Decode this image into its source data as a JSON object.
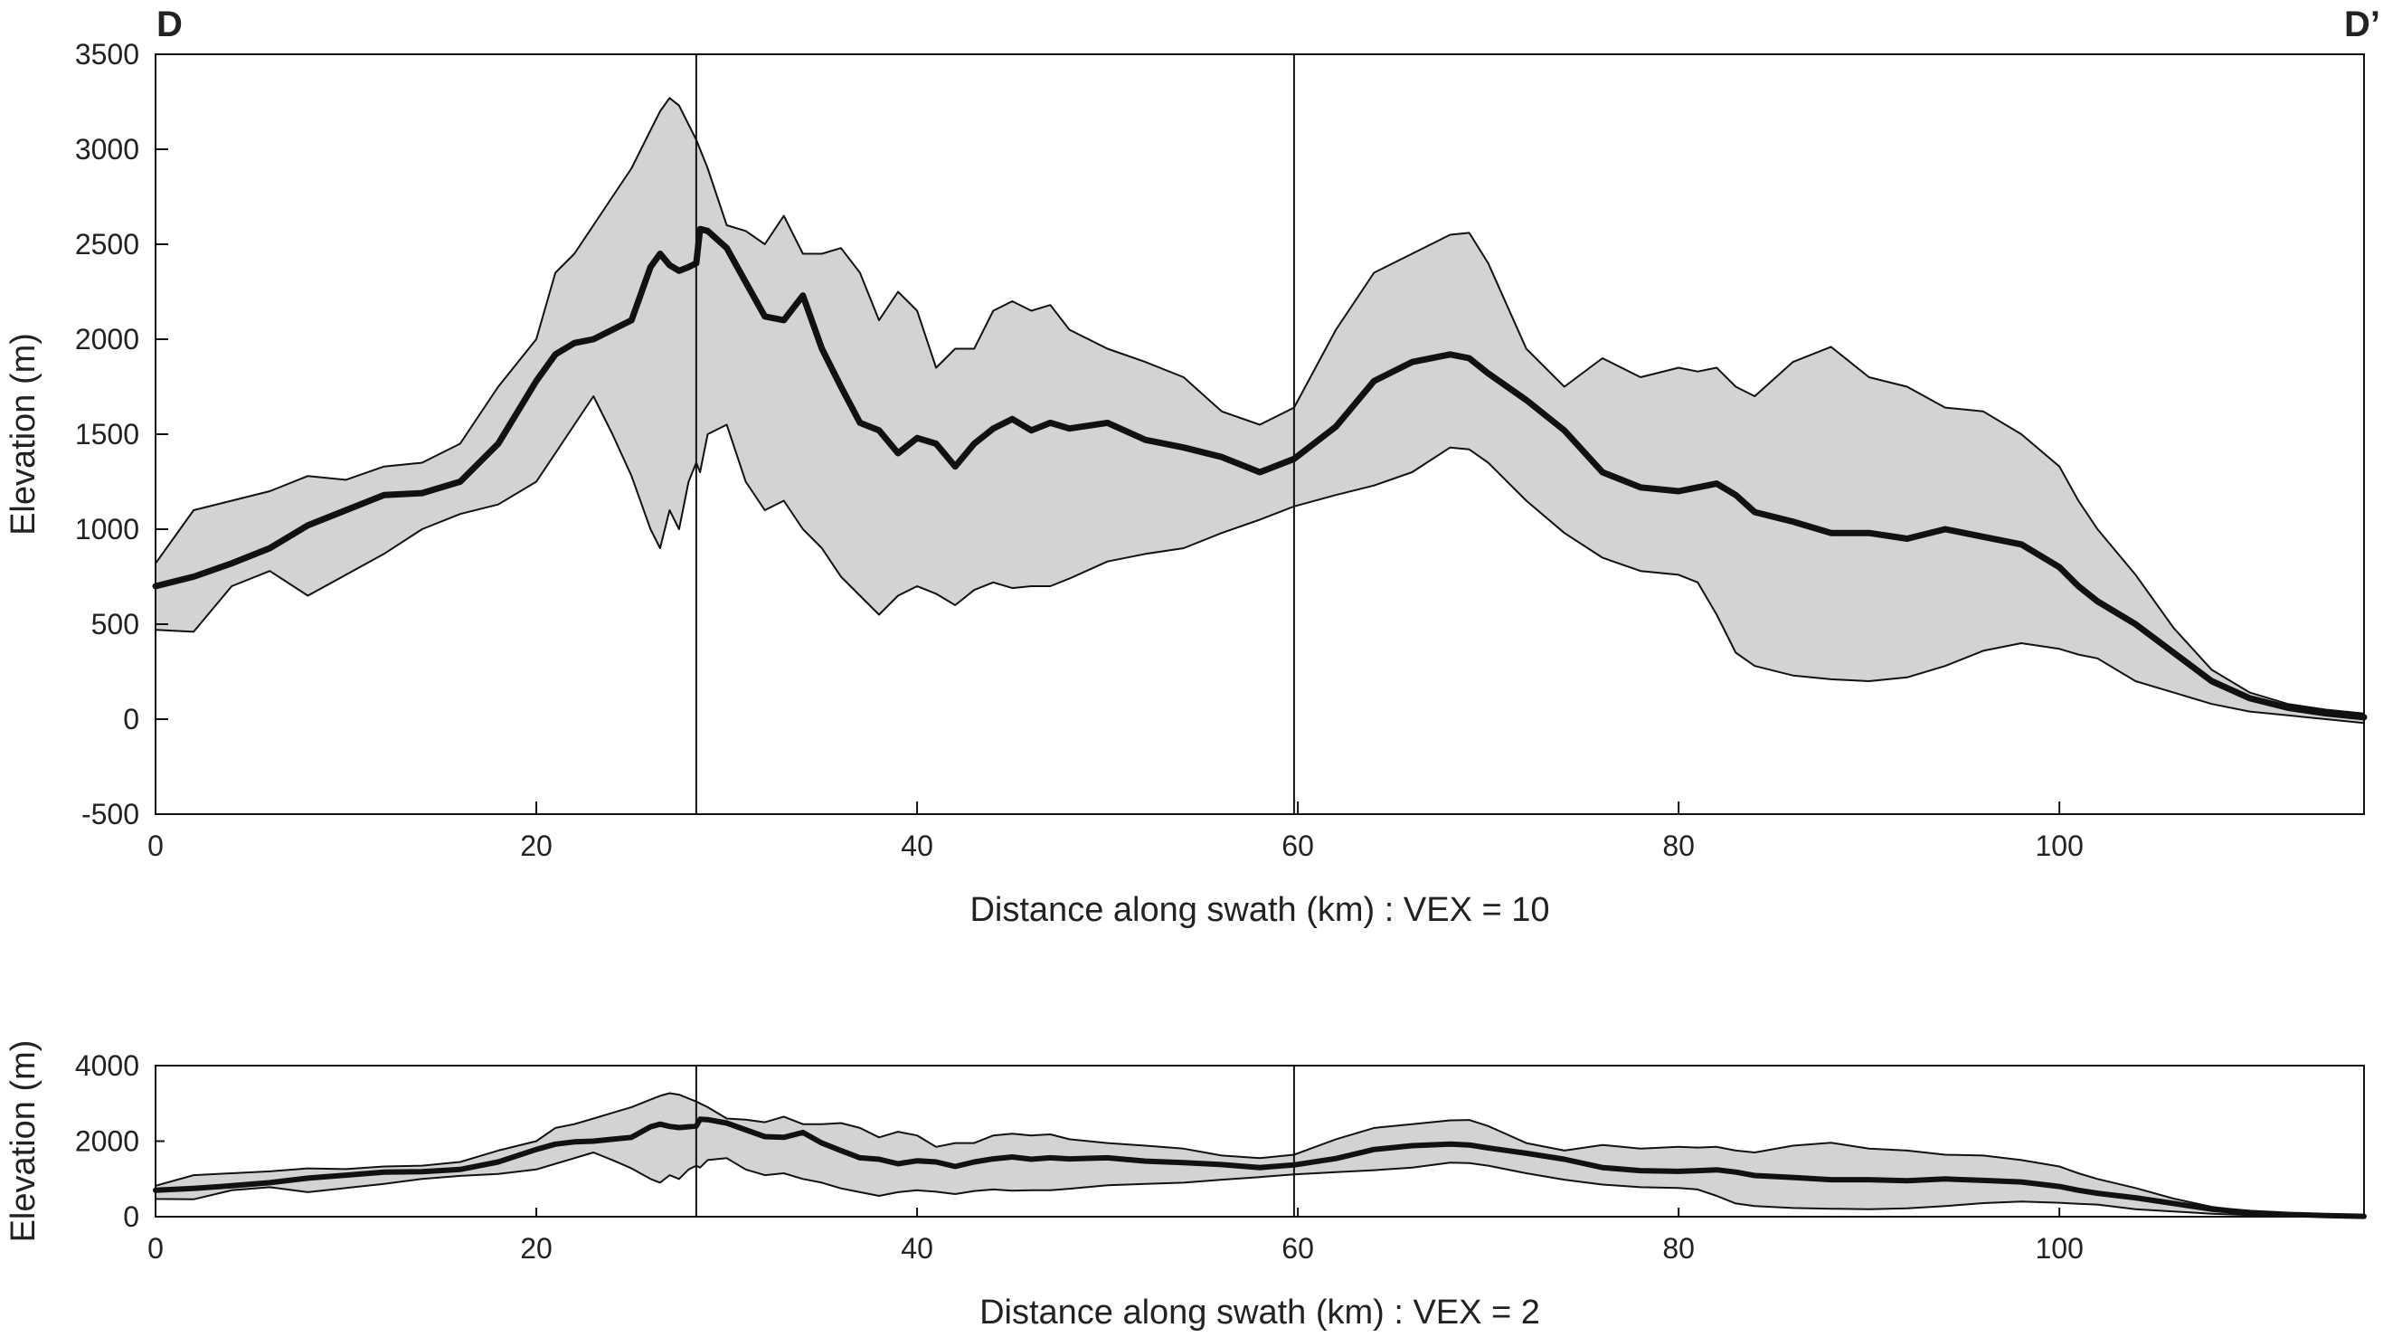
{
  "figure": {
    "corner_left": "D",
    "corner_right": "D’"
  },
  "chart_data": [
    {
      "type": "area",
      "title": "",
      "xlabel": "Distance along swath (km) : VEX = 10",
      "ylabel": "Elevation (m)",
      "xlim": [
        0,
        116
      ],
      "ylim": [
        -500,
        3500
      ],
      "xticks": [
        0,
        20,
        40,
        60,
        80,
        100
      ],
      "yticks": [
        -500,
        0,
        500,
        1000,
        1500,
        2000,
        2500,
        3000,
        3500
      ],
      "grid": false,
      "vertical_markers": [
        28.4,
        59.8
      ],
      "x": [
        0,
        2,
        4,
        6,
        8,
        10,
        12,
        14,
        16,
        18,
        20,
        21,
        22,
        23,
        24,
        25,
        26,
        26.5,
        27,
        27.5,
        28,
        28.4,
        28.6,
        29,
        30,
        31,
        32,
        33,
        34,
        35,
        36,
        37,
        38,
        39,
        40,
        41,
        42,
        43,
        44,
        45,
        46,
        47,
        48,
        50,
        52,
        54,
        56,
        58,
        59.8,
        62,
        64,
        66,
        68,
        69,
        70,
        72,
        74,
        76,
        78,
        80,
        81,
        82,
        83,
        84,
        86,
        88,
        90,
        92,
        94,
        96,
        98,
        100,
        101,
        102,
        104,
        106,
        108,
        110,
        112,
        114,
        116
      ],
      "series": [
        {
          "values": [
            700,
            750,
            820,
            900,
            1020,
            1100,
            1180,
            1190,
            1250,
            1450,
            1780,
            1920,
            1980,
            2000,
            2050,
            2100,
            2380,
            2450,
            2390,
            2360,
            2380,
            2400,
            2580,
            2570,
            2480,
            2300,
            2120,
            2100,
            2230,
            1950,
            1750,
            1560,
            1520,
            1400,
            1480,
            1450,
            1330,
            1450,
            1530,
            1580,
            1520,
            1560,
            1530,
            1560,
            1470,
            1430,
            1380,
            1300,
            1370,
            1540,
            1780,
            1880,
            1920,
            1900,
            1820,
            1680,
            1520,
            1300,
            1220,
            1200,
            1220,
            1240,
            1180,
            1090,
            1040,
            980,
            980,
            950,
            1000,
            960,
            920,
            800,
            700,
            620,
            500,
            350,
            200,
            110,
            60,
            30,
            10
          ]
        },
        {
          "values": [
            820,
            1100,
            1150,
            1200,
            1280,
            1260,
            1330,
            1350,
            1450,
            1750,
            2000,
            2350,
            2450,
            2600,
            2750,
            2900,
            3100,
            3200,
            3270,
            3230,
            3130,
            3050,
            3000,
            2900,
            2600,
            2570,
            2500,
            2650,
            2450,
            2450,
            2480,
            2350,
            2100,
            2250,
            2150,
            1850,
            1950,
            1950,
            2150,
            2200,
            2150,
            2180,
            2050,
            1950,
            1880,
            1800,
            1620,
            1550,
            1640,
            2050,
            2350,
            2450,
            2550,
            2560,
            2400,
            1950,
            1750,
            1900,
            1800,
            1850,
            1830,
            1850,
            1750,
            1700,
            1880,
            1960,
            1800,
            1750,
            1640,
            1620,
            1500,
            1330,
            1150,
            1000,
            760,
            480,
            260,
            140,
            80,
            50,
            30
          ]
        },
        {
          "values": [
            470,
            460,
            700,
            780,
            650,
            760,
            870,
            1000,
            1080,
            1130,
            1250,
            1400,
            1550,
            1700,
            1500,
            1280,
            1000,
            900,
            1100,
            1000,
            1250,
            1350,
            1300,
            1500,
            1550,
            1250,
            1100,
            1150,
            1000,
            900,
            750,
            650,
            550,
            650,
            700,
            660,
            600,
            680,
            720,
            690,
            700,
            700,
            740,
            830,
            870,
            900,
            980,
            1050,
            1120,
            1180,
            1230,
            1300,
            1430,
            1420,
            1350,
            1150,
            980,
            850,
            780,
            760,
            720,
            550,
            350,
            280,
            230,
            210,
            200,
            220,
            280,
            360,
            400,
            370,
            340,
            320,
            200,
            140,
            80,
            40,
            20,
            0,
            -20
          ]
        }
      ],
      "band_between_series": [
        1,
        2
      ]
    },
    {
      "type": "area",
      "title": "",
      "xlabel": "Distance along swath (km) : VEX = 2",
      "ylabel": "Elevation (m)",
      "xlim": [
        0,
        116
      ],
      "ylim": [
        0,
        4000
      ],
      "xticks": [
        0,
        20,
        40,
        60,
        80,
        100
      ],
      "yticks": [
        0,
        2000,
        4000
      ],
      "grid": false,
      "vertical_markers": [
        28.4,
        59.8
      ],
      "same_data_as_chart": 0
    }
  ]
}
